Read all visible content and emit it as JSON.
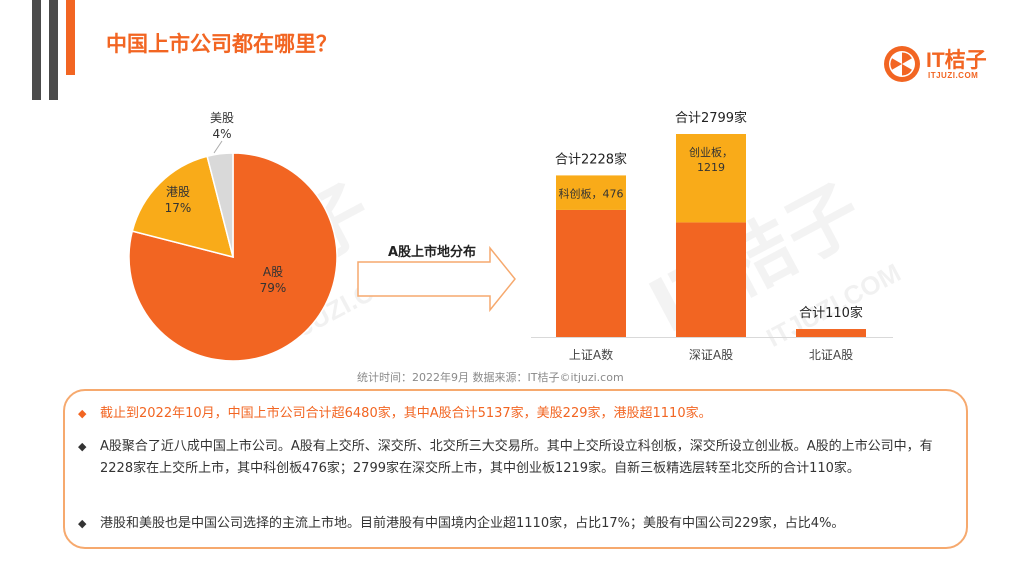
{
  "title": "中国上市公司都在哪里？",
  "logo": {
    "text": "IT桔子",
    "sub": "ITJUZI.COM",
    "color": "#f26522"
  },
  "watermark": {
    "main": "IT桔子",
    "sub": "ITJUZI.COM"
  },
  "arrow_label": "A股上市地分布",
  "source": "统计时间：2022年9月   数据来源：IT桔子©itjuzi.com",
  "chart_data": [
    {
      "type": "pie",
      "slices": [
        {
          "name": "A股",
          "value": 79,
          "label": "79%",
          "color": "#f26522"
        },
        {
          "name": "港股",
          "value": 17,
          "label": "17%",
          "color": "#f9ab19"
        },
        {
          "name": "美股",
          "value": 4,
          "label": "4%",
          "color": "#d9d9d9"
        }
      ]
    },
    {
      "type": "bar",
      "stacked": true,
      "categories": [
        "上证A数",
        "深证A股",
        "北证A股"
      ],
      "series": [
        {
          "values": [
            1752,
            1580,
            110
          ],
          "color": "#f26522"
        },
        {
          "values": [
            476,
            1219,
            0
          ],
          "color": "#f9ab19"
        }
      ],
      "segment_labels": [
        "科创板，476",
        "创业板，\n1219",
        ""
      ],
      "totals": [
        "合计2228家",
        "合计2799家",
        "合计110家"
      ],
      "ylim": [
        0,
        2799
      ]
    }
  ],
  "bullets": [
    {
      "mark": "◆",
      "text": "截止到2022年10月，中国上市公司合计超6480家，其中A股合计5137家，美股229家，港股超1110家。"
    },
    {
      "mark": "◆",
      "text": "A股聚合了近八成中国上市公司。A股有上交所、深交所、北交所三大交易所。其中上交所设立科创板，深交所设立创业板。A股的上市公司中，有2228家在上交所上市，其中科创板476家；2799家在深交所上市，其中创业板1219家。自新三板精选层转至北交所的合计110家。"
    },
    {
      "mark": "◆",
      "text": "港股和美股也是中国公司选择的主流上市地。目前港股有中国境内企业超1110家，占比17%；美股有中国公司229家，占比4%。"
    }
  ]
}
